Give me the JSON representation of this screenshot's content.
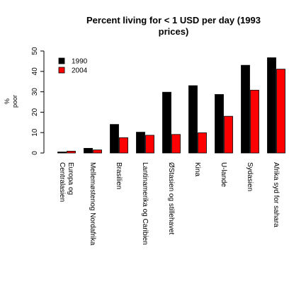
{
  "chart_data": {
    "type": "bar",
    "title_line1": "Percent living for < 1 USD per day (1993",
    "title_line2": "prices)",
    "ylabel_line1": "%",
    "ylabel_line2": "poor",
    "ylim": [
      0,
      50
    ],
    "yticks": [
      0,
      10,
      20,
      30,
      40,
      50
    ],
    "legend_position": "top-left",
    "categories": [
      "Europa og Centralasien",
      "Mellemøstenog Nordafrika",
      "Brasilien",
      "Lantinamerika og Caribien",
      "ØStasien og stillehavet",
      "Kina",
      "U-lande",
      "Sydasien",
      "Afrika syd for sahara"
    ],
    "category_lines": [
      [
        "Europa og",
        "Centralasien"
      ],
      [
        "Mellemøstenog Nordafrika"
      ],
      [
        "Brasilien"
      ],
      [
        "Lantinamerika og Caribien"
      ],
      [
        "ØStasien og stillehavet"
      ],
      [
        "Kina"
      ],
      [
        "U-lande"
      ],
      [
        "Sydasien"
      ],
      [
        "Afrika syd for sahara"
      ]
    ],
    "series": [
      {
        "name": "1990",
        "color": "#000000",
        "values": [
          0.5,
          2.3,
          14.0,
          10.2,
          29.8,
          33.0,
          28.7,
          43.0,
          46.7
        ]
      },
      {
        "name": "2004",
        "color": "#ff0000",
        "values": [
          0.9,
          1.5,
          7.5,
          8.7,
          9.1,
          9.9,
          18.0,
          30.8,
          41.1
        ]
      }
    ]
  }
}
